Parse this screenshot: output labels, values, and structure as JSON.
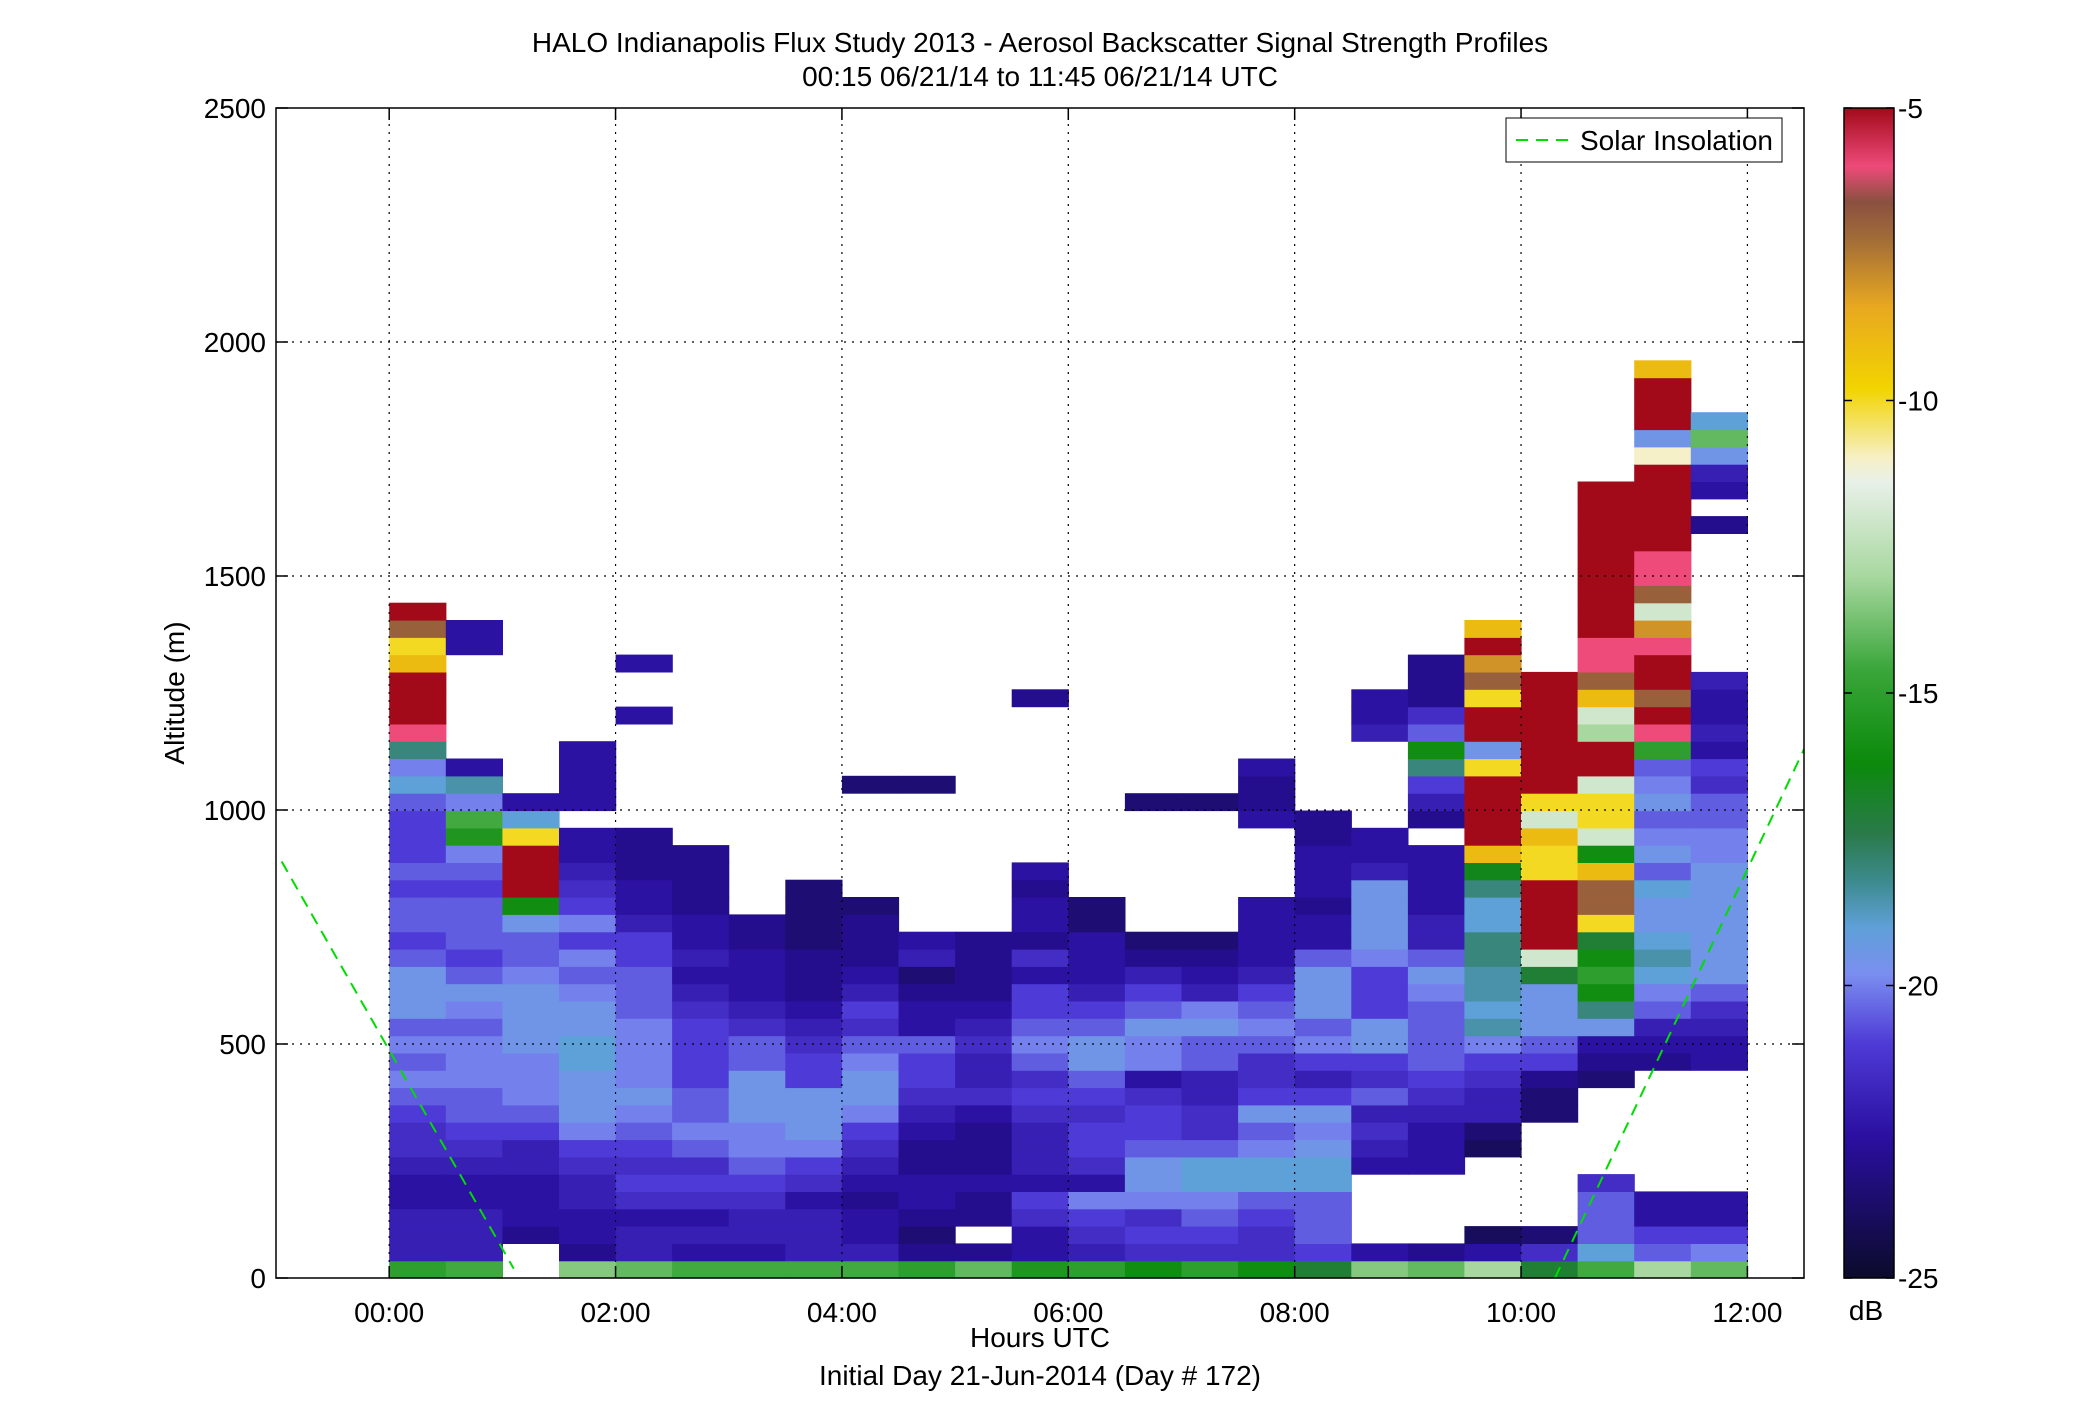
{
  "chart_data": {
    "type": "heatmap",
    "title": "HALO Indianapolis Flux Study 2013 - Aerosol Backscatter Signal Strength Profiles",
    "subtitle": "00:15 06/21/14 to 11:45 06/21/14  UTC",
    "xlabel": "Hours UTC",
    "xlabel2": "Initial Day 21-Jun-2014 (Day # 172)",
    "ylabel": "Altitude (m)",
    "xlim": [
      -1,
      12.5
    ],
    "ylim": [
      0,
      2500
    ],
    "x_ticks": [
      0,
      2,
      4,
      6,
      8,
      10,
      12
    ],
    "x_tick_labels": [
      "00:00",
      "02:00",
      "04:00",
      "06:00",
      "08:00",
      "10:00",
      "12:00"
    ],
    "y_ticks": [
      0,
      500,
      1000,
      1500,
      2000,
      2500
    ],
    "y_tick_labels": [
      "0",
      "500",
      "1000",
      "1500",
      "2000",
      "2500"
    ],
    "grid": true,
    "colorbar": {
      "min": -25,
      "max": -5,
      "ticks": [
        -5,
        -10,
        -15,
        -20,
        -25
      ],
      "tick_labels": [
        "-5",
        "-10",
        "-15",
        "-20",
        "-25"
      ],
      "unit": "dB"
    },
    "legend": {
      "position": "top-right",
      "entries": [
        {
          "name": "Solar Insolation",
          "style": "dashed",
          "color": "#00dd00"
        }
      ]
    },
    "time_bin_hours": 0.5,
    "time_start": 0.25,
    "altitude_bin_m": 37,
    "altitude_start_m": 37,
    "columns": [
      {
        "t": 0.25,
        "bot": 37,
        "v": [
          -15,
          -22,
          -22,
          -22,
          -22.5,
          -22.5,
          -22,
          -21.5,
          -21.5,
          -21,
          -20.5,
          -20,
          -20.5,
          -20,
          -20.5,
          -19.5,
          -19.5,
          -19.5,
          -20.5,
          -21,
          -20.5,
          -20.5,
          -21,
          -20.5,
          -21,
          -21,
          -21,
          -20.5,
          -19,
          -20,
          -18,
          -6,
          -5,
          -5,
          -5,
          -9,
          -10,
          -7,
          -5
        ]
      },
      {
        "t": 0.75,
        "bot": 37,
        "v": [
          -14.5,
          -22,
          -22,
          -22,
          -22.5,
          -22.5,
          -22,
          -21.5,
          -21,
          -20.5,
          -20.5,
          -20,
          -20,
          -20,
          -20.5,
          -20,
          -19.5,
          -20.5,
          -21,
          -20.5,
          -20.5,
          -20.5,
          -21,
          -20.5,
          -20,
          -15.5,
          -14.5,
          -20,
          -18.5,
          -22.5,
          null,
          null,
          null,
          null,
          null,
          null,
          -22.5,
          -22.5
        ]
      },
      {
        "t": 1.25,
        "bot": 74,
        "v": [
          null,
          -23,
          -22.5,
          -22.5,
          -22.5,
          -22,
          -22,
          -21,
          -20.5,
          -20,
          -20,
          -20,
          -19.5,
          -19.5,
          -19.5,
          -19.5,
          -20,
          -20.5,
          -20.5,
          -19.5,
          -16,
          -5,
          -5,
          -5,
          -10,
          -19,
          -22.5
        ]
      },
      {
        "t": 1.75,
        "bot": 37,
        "v": [
          -13.5,
          -23,
          -22.5,
          -22.5,
          -22,
          -22,
          -21.5,
          -21,
          -20,
          -19.5,
          -19.5,
          -19.5,
          -19,
          -19,
          -19.5,
          -19.5,
          -20,
          -20.5,
          -20,
          -21,
          -20,
          -21,
          -21.5,
          -22,
          -22.5,
          -22.5,
          null,
          -22.5,
          -22.5,
          -22.5,
          -22.5
        ]
      },
      {
        "t": 2.25,
        "bot": 37,
        "v": [
          -14,
          -22,
          -22,
          -22.5,
          -21.5,
          -21,
          -21.5,
          -21,
          -20.5,
          -20,
          -19.5,
          -20,
          -20,
          -20,
          -20,
          -20.5,
          -20.5,
          -20.5,
          -21,
          -21,
          -22,
          -22.5,
          -22.5,
          -23,
          -23,
          -23,
          null,
          null,
          null,
          null,
          null,
          null,
          -22.5,
          null,
          null,
          -22.5
        ]
      },
      {
        "t": 2.75,
        "bot": 37,
        "v": [
          -14.5,
          -22.5,
          -22,
          -22.5,
          -21.5,
          -21,
          -21.5,
          -20.5,
          -20,
          -20.5,
          -20.5,
          -21,
          -21,
          -21,
          -21,
          -21.5,
          -22,
          -22.5,
          -22,
          -22.5,
          -22.5,
          -23,
          -23,
          -23,
          -23
        ]
      },
      {
        "t": 3.25,
        "bot": 37,
        "v": [
          -14.5,
          -22.5,
          -22,
          -22,
          -21.5,
          -21,
          -20.5,
          -20,
          -20,
          -19.5,
          -19.5,
          -19.5,
          -20.5,
          -20.5,
          -21.5,
          -22,
          -22.5,
          -22.5,
          -22.5,
          -23,
          -23
        ]
      },
      {
        "t": 3.75,
        "bot": 37,
        "v": [
          -14.5,
          -22,
          -22,
          -22,
          -22.5,
          -21.5,
          -21,
          -20,
          -19.5,
          -19.5,
          -19.5,
          -21,
          -21,
          -21.5,
          -22,
          -22.5,
          -23,
          -23,
          -23,
          -23.5,
          -23.5,
          -23.5,
          -23.5
        ]
      },
      {
        "t": 4.25,
        "bot": 37,
        "v": [
          -14.5,
          -22,
          -22.5,
          -22.5,
          -23,
          -22.5,
          -22,
          -21.5,
          -21,
          -20,
          -19.5,
          -19.5,
          -20,
          -20.5,
          -21.5,
          -21,
          -22,
          -22.5,
          -23,
          -23,
          -23,
          -23.5,
          null,
          null,
          null,
          null,
          null,
          null,
          -23.5
        ]
      },
      {
        "t": 4.75,
        "bot": 37,
        "v": [
          -15,
          -23,
          -23.5,
          -23,
          -22.5,
          -22.5,
          -23,
          -23,
          -22.5,
          -22,
          -21.5,
          -21,
          -21,
          -20.5,
          -22.5,
          -22.5,
          -23,
          -23.5,
          -22,
          -22.5,
          null,
          null,
          null,
          null,
          null,
          null,
          null,
          null,
          -23.5
        ]
      },
      {
        "t": 5.25,
        "bot": 37,
        "v": [
          -14,
          -23,
          null,
          -23,
          -23,
          -22.5,
          -23,
          -23,
          -23,
          -22.5,
          -21.5,
          -22,
          -22,
          -21.5,
          -22,
          -22.5,
          -23,
          -23,
          -23,
          -23
        ]
      },
      {
        "t": 5.75,
        "bot": 37,
        "v": [
          -15.5,
          -22.5,
          -22.5,
          -21.5,
          -21,
          -22.5,
          -22,
          -22,
          -22,
          -21.5,
          -21,
          -21.5,
          -20.5,
          -20,
          -20.5,
          -21,
          -21,
          -22.5,
          -21.5,
          -23,
          -22.5,
          -22.5,
          -23,
          -22.5,
          null,
          null,
          null,
          null,
          null,
          null,
          null,
          null,
          null,
          -23
        ]
      },
      {
        "t": 6.25,
        "bot": 37,
        "v": [
          -15,
          -22,
          -21.5,
          -21,
          -20,
          -22.5,
          -21.5,
          -21,
          -21,
          -21.5,
          -21,
          -20.5,
          -19.5,
          -19.5,
          -20.5,
          -21,
          -22,
          -22.5,
          -22.5,
          -22.5,
          -23.5,
          -23.5
        ]
      },
      {
        "t": 6.75,
        "bot": 37,
        "v": [
          -16,
          -21.5,
          -21,
          -21.5,
          -20,
          -19.5,
          -19.5,
          -20.5,
          -21,
          -21,
          -21.5,
          -22.5,
          -20,
          -20,
          -19.5,
          -20.5,
          -21,
          -22,
          -23,
          -23.5,
          null,
          null,
          null,
          null,
          null,
          null,
          null,
          -23.5
        ]
      },
      {
        "t": 7.25,
        "bot": 37,
        "v": [
          -15,
          -21.5,
          -21,
          -20.5,
          -20,
          -19,
          -19,
          -20.5,
          -21.5,
          -21.5,
          -22,
          -22,
          -20.5,
          -20.5,
          -19.5,
          -20,
          -22,
          -22.5,
          -23,
          -23.5,
          null,
          null,
          null,
          null,
          null,
          null,
          null,
          -23.5
        ]
      },
      {
        "t": 7.75,
        "bot": 37,
        "v": [
          -16,
          -21.5,
          -21.5,
          -21,
          -20.5,
          -19,
          -19,
          -20,
          -20.5,
          -19.5,
          -21,
          -21.5,
          -21.5,
          -20.5,
          -20,
          -20.5,
          -21,
          -22,
          -22.5,
          -22.5,
          -22.5,
          -22.5,
          null,
          null,
          null,
          null,
          -22.5,
          -23,
          -23,
          -22.5
        ]
      },
      {
        "t": 8.25,
        "bot": 37,
        "v": [
          -17,
          -21,
          -20.5,
          -20.5,
          -20.5,
          -19,
          -19,
          -19.5,
          -20,
          -19.5,
          -21,
          -22,
          -21,
          -20,
          -20.5,
          -19.5,
          -19.5,
          -19.5,
          -20.5,
          -22.5,
          -22.5,
          -23,
          -22.5,
          -22.5,
          -22.5,
          -23,
          -23
        ]
      },
      {
        "t": 8.75,
        "bot": 37,
        "v": [
          -13.5,
          -22.5,
          null,
          null,
          null,
          null,
          -22.5,
          -22,
          -21.5,
          -22,
          -20.5,
          -21.5,
          -21,
          -19.5,
          -19.5,
          -21,
          -21,
          -21,
          -20,
          -19.5,
          -19.5,
          -19.5,
          -19.5,
          -22,
          -22.5,
          -22.5,
          null,
          null,
          null,
          null,
          null,
          -22,
          -22.5,
          -22.5
        ]
      },
      {
        "t": 9.25,
        "bot": 37,
        "v": [
          -14,
          -23,
          null,
          null,
          null,
          null,
          -22.5,
          -22.5,
          -22.5,
          -22,
          -21.5,
          -21,
          -20.5,
          -20.5,
          -20.5,
          -20.5,
          -20,
          -19.5,
          -20.5,
          -22,
          -22,
          -22.5,
          -22.5,
          -22.5,
          -22.5,
          null,
          -23,
          -22,
          -21,
          -18,
          -16,
          -20.5,
          -21.5,
          -23,
          -23,
          -23
        ]
      },
      {
        "t": 9.75,
        "bot": 37,
        "v": [
          -13,
          -22.5,
          -24,
          null,
          null,
          null,
          null,
          -24,
          -23.5,
          -22,
          -22,
          -21.5,
          -21,
          -20,
          -18.5,
          -19,
          -18.5,
          -18.5,
          -18,
          -18,
          -19,
          -19,
          -18,
          -16.5,
          -9,
          -5,
          -5,
          -5,
          -5,
          -10,
          -19.5,
          -5,
          -5,
          -10,
          -7,
          -8,
          -5,
          -9
        ]
      },
      {
        "t": 10.25,
        "bot": 37,
        "v": [
          -17,
          -21.5,
          -23.5,
          null,
          null,
          null,
          null,
          null,
          null,
          -23.5,
          -23.5,
          -23,
          -21,
          -20.5,
          -19.5,
          -19.5,
          -19.5,
          -17,
          -12,
          -5,
          -5,
          -5,
          -5,
          -10,
          -10,
          -9,
          -12,
          -10,
          -5,
          -5,
          -5,
          -5,
          -5,
          -5,
          -5
        ]
      },
      {
        "t": 10.75,
        "bot": 37,
        "v": [
          -14.5,
          -19,
          -20.5,
          -20.5,
          -20.5,
          -21.5,
          null,
          null,
          null,
          null,
          null,
          -23.5,
          -23,
          -22.5,
          -19.5,
          -18,
          -16,
          -15,
          -16,
          -17,
          -10,
          -7,
          -7,
          -9,
          -16,
          -12,
          -10,
          -10,
          -12,
          -5,
          -5,
          -13,
          -12,
          -9,
          -7,
          -6,
          -6,
          -5,
          -5,
          -5,
          -5,
          -5,
          -5,
          -5,
          -5,
          -5
        ]
      },
      {
        "t": 11.25,
        "bot": 37,
        "v": [
          -13,
          -20.5,
          -21,
          -22.5,
          -22.5,
          null,
          null,
          null,
          null,
          null,
          null,
          null,
          -23,
          -22.5,
          -22,
          -20.5,
          -20,
          -19,
          -18.5,
          -19,
          -19.5,
          -19.5,
          -19,
          -20.5,
          -19.5,
          -20,
          -20.5,
          -19.5,
          -20,
          -20.5,
          -15,
          -6,
          -5,
          -7,
          -5,
          -5,
          -6,
          -8,
          -12,
          -7,
          -6,
          -6,
          -5,
          -5,
          -5,
          -5,
          -5,
          -11,
          -19.5,
          -5,
          -5,
          -5,
          -9
        ]
      },
      {
        "t": 11.75,
        "bot": 37,
        "v": [
          -14,
          -20,
          -21,
          -22.5,
          -22.5,
          null,
          null,
          null,
          null,
          null,
          null,
          null,
          -22.5,
          -22.5,
          -22,
          -21.5,
          -20.5,
          -19.5,
          -19.5,
          -19.5,
          -19.5,
          -19.5,
          -19.5,
          -19.5,
          -20,
          -20,
          -20.5,
          -20.5,
          -21.5,
          -21,
          -22.5,
          -22,
          -22.5,
          -22.5,
          -22,
          null,
          null,
          null,
          null,
          null,
          null,
          null,
          null,
          -23,
          null,
          -22.5,
          -22,
          -19.5,
          -14,
          -19
        ]
      }
    ],
    "solar_insolation_segments": [
      {
        "x": [
          -0.95,
          1.1
        ],
        "y": [
          890,
          20
        ]
      },
      {
        "x": [
          10.3,
          12.5
        ],
        "y": [
          0,
          1130
        ]
      }
    ]
  }
}
